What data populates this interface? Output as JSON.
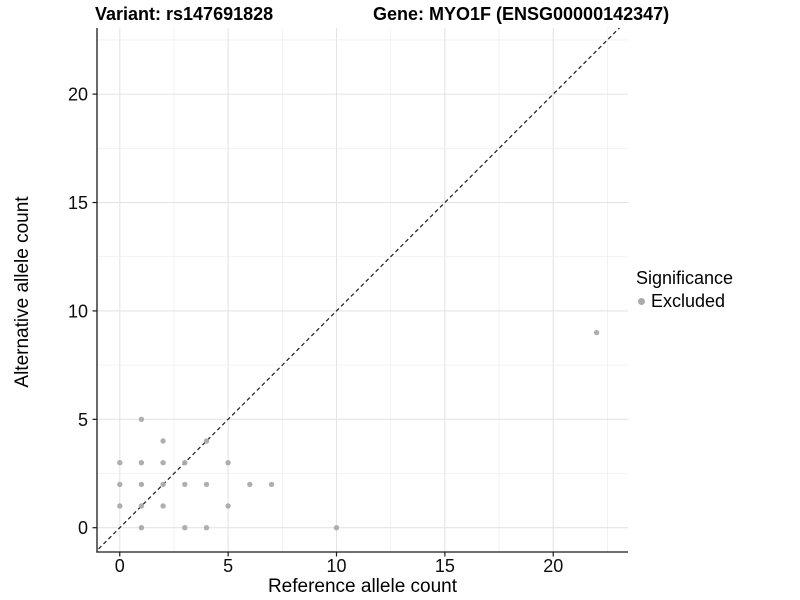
{
  "header": {
    "variant_title": "Variant: rs147691828",
    "gene_title": "Gene: MYO1F (ENSG00000142347)"
  },
  "legend": {
    "title": "Significance",
    "items": [
      {
        "label": "Excluded",
        "color": "#ababab"
      }
    ]
  },
  "colors": {
    "point": "#ababab",
    "axis_line": "#1a1a1a",
    "tick_text": "#0d0d0d",
    "grid_major": "#e4e4e4",
    "grid_minor": "#efefef",
    "identity_line": "#1a1a1a",
    "background": "#ffffff"
  },
  "chart_data": {
    "type": "scatter",
    "title": "Variant: rs147691828 / Gene: MYO1F (ENSG00000142347)",
    "xlabel": "Reference allele count",
    "ylabel": "Alternative allele count",
    "xlim": [
      -1.05,
      23.45
    ],
    "ylim": [
      -1.12,
      23.05
    ],
    "x_ticks": [
      0,
      5,
      10,
      15,
      20
    ],
    "y_ticks": [
      0,
      5,
      10,
      15,
      20
    ],
    "minor_grid_step": 2.5,
    "grid": true,
    "legend_position": "right",
    "identity_line": {
      "slope": 1,
      "intercept": 0,
      "style": "dashed"
    },
    "series": [
      {
        "name": "Excluded",
        "color": "#ababab",
        "points": [
          [
            0,
            1
          ],
          [
            0,
            2
          ],
          [
            0,
            3
          ],
          [
            1,
            0
          ],
          [
            1,
            1
          ],
          [
            1,
            2
          ],
          [
            1,
            3
          ],
          [
            1,
            5
          ],
          [
            2,
            1
          ],
          [
            2,
            2
          ],
          [
            2,
            3
          ],
          [
            2,
            4
          ],
          [
            3,
            0
          ],
          [
            3,
            2
          ],
          [
            3,
            3
          ],
          [
            4,
            0
          ],
          [
            4,
            2
          ],
          [
            4,
            4
          ],
          [
            5,
            1
          ],
          [
            5,
            3
          ],
          [
            6,
            2
          ],
          [
            7,
            2
          ],
          [
            10,
            0
          ],
          [
            22,
            9
          ]
        ]
      }
    ]
  }
}
